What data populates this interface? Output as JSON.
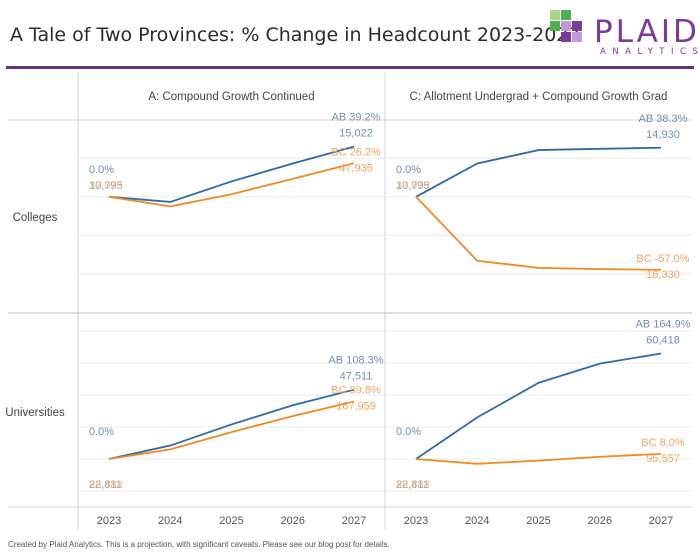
{
  "header": {
    "title": "A Tale of Two Provinces: % Change in Headcount 2023-2027",
    "logo_text": "PLAID",
    "logo_subtext": "ANALYTICS"
  },
  "footer": {
    "note": "Created by Plaid Analytics. This is a projection, with significant caveats. Please see our blog post for details."
  },
  "colors": {
    "AB": "#2e6aa4",
    "BC": "#f08a24",
    "AB_label": "#6f8fb2",
    "BC_label": "#f2a45e",
    "logo_purple": "#7b3a96",
    "logo_green_dark": "#4caf50",
    "logo_green_light": "#a6d785",
    "logo_purple_light": "#c49ad6"
  },
  "chart_data": {
    "type": "line",
    "x": [
      2023,
      2024,
      2025,
      2026,
      2027
    ],
    "column_headers": [
      "A: Compound Growth Continued",
      "C: Allotment Undergrad + Compound Growth Grad"
    ],
    "row_headers": [
      "Colleges",
      "Universities"
    ],
    "panels": [
      {
        "column": "A: Compound Growth Continued",
        "row": "Colleges",
        "ylim": [
          -90,
          60
        ],
        "series": [
          {
            "name": "AB",
            "values": [
              0.0,
              -4.0,
              12.0,
              26.0,
              39.2
            ],
            "start_label": "0.0%",
            "start_value": "10,795",
            "end_label": "AB 39.2%",
            "end_value": "15,022"
          },
          {
            "name": "BC",
            "values": [
              0.0,
              -7.5,
              2.0,
              14.0,
              26.2
            ],
            "start_label": "0.0%",
            "start_value": "37,979",
            "end_label": "BC 26.2%",
            "end_value": "47,935"
          }
        ]
      },
      {
        "column": "C: Allotment Undergrad + Compound Growth Grad",
        "row": "Colleges",
        "ylim": [
          -90,
          60
        ],
        "series": [
          {
            "name": "AB",
            "values": [
              0.0,
              26.0,
              36.5,
              37.5,
              38.3
            ],
            "start_label": "0.0%",
            "start_value": "10,795",
            "end_label": "AB 38.3%",
            "end_value": "14,930"
          },
          {
            "name": "BC",
            "values": [
              0.0,
              -50.0,
              -55.5,
              -56.5,
              -57.0
            ],
            "start_label": "0.0%",
            "start_value": "37,979",
            "end_label": "BC -57.0%",
            "end_value": "16,330"
          }
        ]
      },
      {
        "column": "A: Compound Growth Continued",
        "row": "Universities",
        "ylim": [
          -75,
          225
        ],
        "series": [
          {
            "name": "AB",
            "values": [
              0.0,
              21.0,
              54.0,
              84.0,
              108.3
            ],
            "start_label": "0.0%",
            "start_value": "22,811",
            "end_label": "AB 108.3%",
            "end_value": "47,511"
          },
          {
            "name": "BC",
            "values": [
              0.0,
              15.0,
              42.0,
              67.0,
              89.8
            ],
            "start_label": "0.0%",
            "start_value": "88,483",
            "end_label": "BC 89.8%",
            "end_value": "167,959"
          }
        ]
      },
      {
        "column": "C: Allotment Undergrad + Compound Growth Grad",
        "row": "Universities",
        "ylim": [
          -75,
          225
        ],
        "series": [
          {
            "name": "AB",
            "values": [
              0.0,
              65.0,
              119.0,
              149.0,
              164.9
            ],
            "start_label": "0.0%",
            "start_value": "22,811",
            "end_label": "AB 164.9%",
            "end_value": "60,418"
          },
          {
            "name": "BC",
            "values": [
              0.0,
              -7.5,
              -2.5,
              3.5,
              8.0
            ],
            "start_label": "0.0%",
            "start_value": "88,483",
            "end_label": "BC 8.0%",
            "end_value": "95,557"
          }
        ]
      }
    ],
    "grid": true,
    "legend": "inline end labels"
  }
}
